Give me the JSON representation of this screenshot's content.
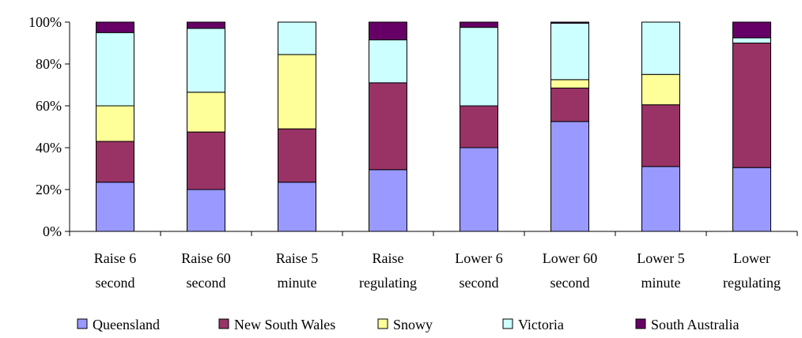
{
  "chart_data": {
    "type": "bar",
    "stacked": true,
    "percent": true,
    "categories": [
      [
        "Raise 6",
        "second"
      ],
      [
        "Raise 60",
        "second"
      ],
      [
        "Raise 5",
        "minute"
      ],
      [
        "Raise",
        "regulating"
      ],
      [
        "Lower 6",
        "second"
      ],
      [
        "Lower 60",
        "second"
      ],
      [
        "Lower 5",
        "minute"
      ],
      [
        "Lower",
        "regulating"
      ]
    ],
    "series": [
      {
        "name": "Queensland",
        "color": "#9999ff",
        "values": [
          23.5,
          20,
          23.5,
          29.5,
          40,
          52.5,
          31,
          30.5
        ]
      },
      {
        "name": "New South Wales",
        "color": "#993366",
        "values": [
          19.5,
          27.5,
          25.5,
          41.5,
          20,
          16,
          29.5,
          59.5
        ]
      },
      {
        "name": "Snowy",
        "color": "#ffff99",
        "values": [
          17,
          19,
          35.5,
          0,
          0,
          4,
          14.5,
          0
        ]
      },
      {
        "name": "Victoria",
        "color": "#ccffff",
        "values": [
          35,
          30.5,
          15.5,
          20.5,
          37.5,
          27,
          25,
          2.5
        ]
      },
      {
        "name": "South Australia",
        "color": "#660066",
        "values": [
          5,
          3,
          0,
          8.5,
          2.5,
          0.5,
          0,
          7.5
        ]
      }
    ],
    "ylim": [
      0,
      100
    ],
    "yticks": [
      "0%",
      "20%",
      "40%",
      "60%",
      "80%",
      "100%"
    ],
    "legend_position": "bottom",
    "grid": false
  }
}
